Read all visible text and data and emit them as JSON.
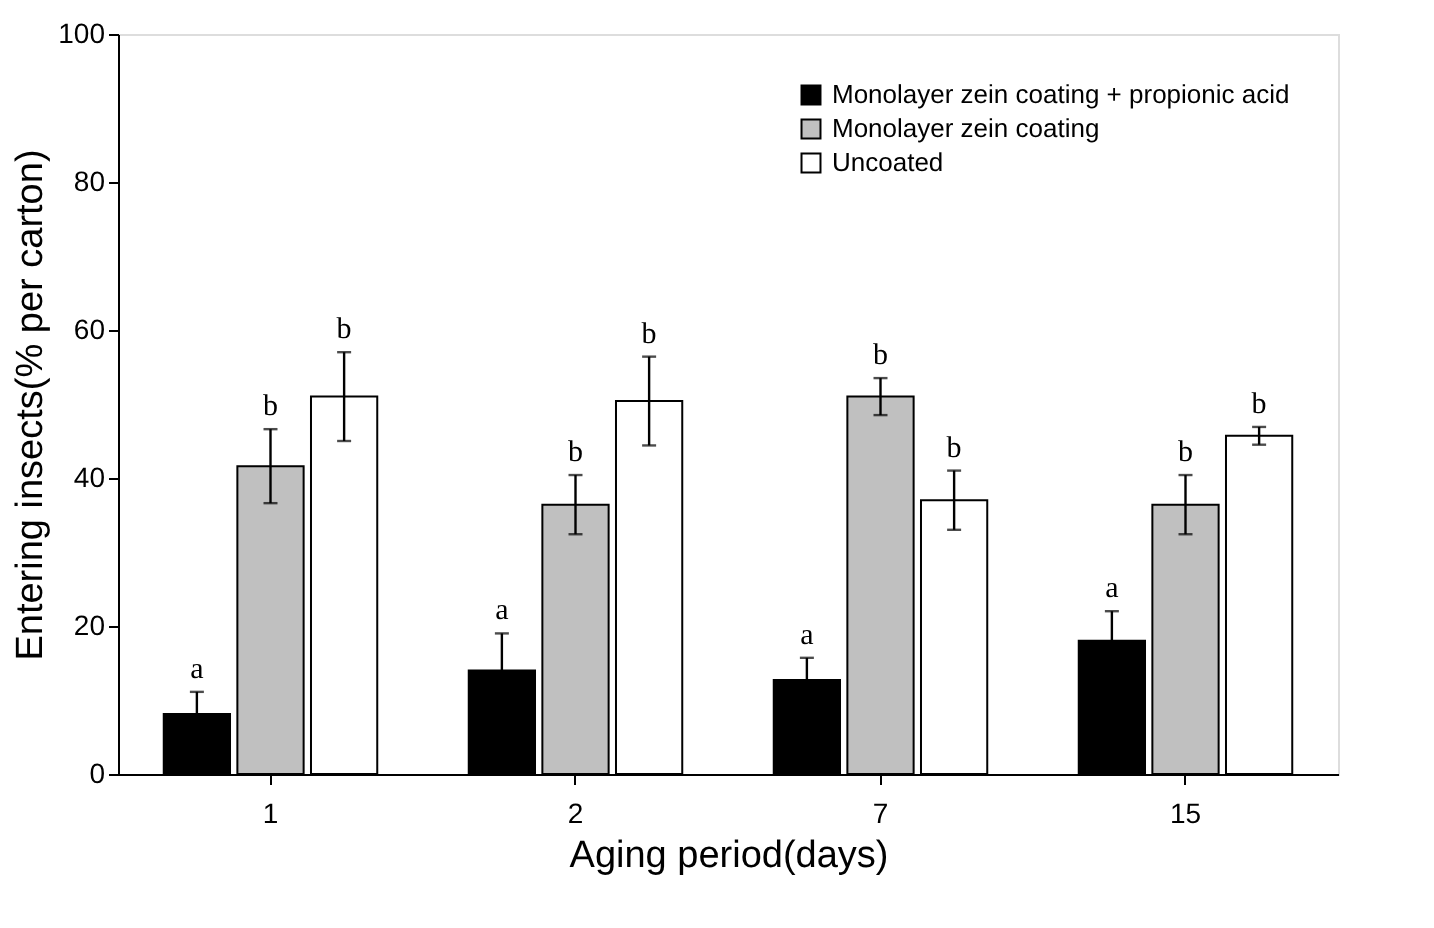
{
  "chart_data": {
    "type": "bar",
    "xlabel": "Aging  period(days)",
    "ylabel": "Entering insects(% per carton)",
    "categories": [
      "1",
      "2",
      "7",
      "15"
    ],
    "ylim": [
      0,
      100
    ],
    "yticks": [
      0,
      20,
      40,
      60,
      80,
      100
    ],
    "grid": false,
    "legend": "top right",
    "series": [
      {
        "name": "Monolayer zein coating + propionic acid",
        "color": "#000000",
        "values": [
          8.1,
          14,
          12.7,
          18
        ],
        "errors": [
          3,
          5,
          3,
          4
        ],
        "value_labels": [
          "a",
          "a",
          "a",
          "a"
        ]
      },
      {
        "name": "Monolayer zein coating",
        "color": "#c0c0c0",
        "values": [
          41.6,
          36.4,
          51,
          36.4
        ],
        "errors": [
          5,
          4,
          2.5,
          4
        ],
        "value_labels": [
          "b",
          "b",
          "b",
          "b"
        ]
      },
      {
        "name": "Uncoated",
        "color": "#ffffff",
        "values": [
          51,
          50.4,
          37,
          45.7
        ],
        "errors": [
          6,
          6,
          4,
          1.2
        ],
        "value_labels": [
          "b",
          "b",
          "b",
          "b"
        ]
      }
    ]
  }
}
